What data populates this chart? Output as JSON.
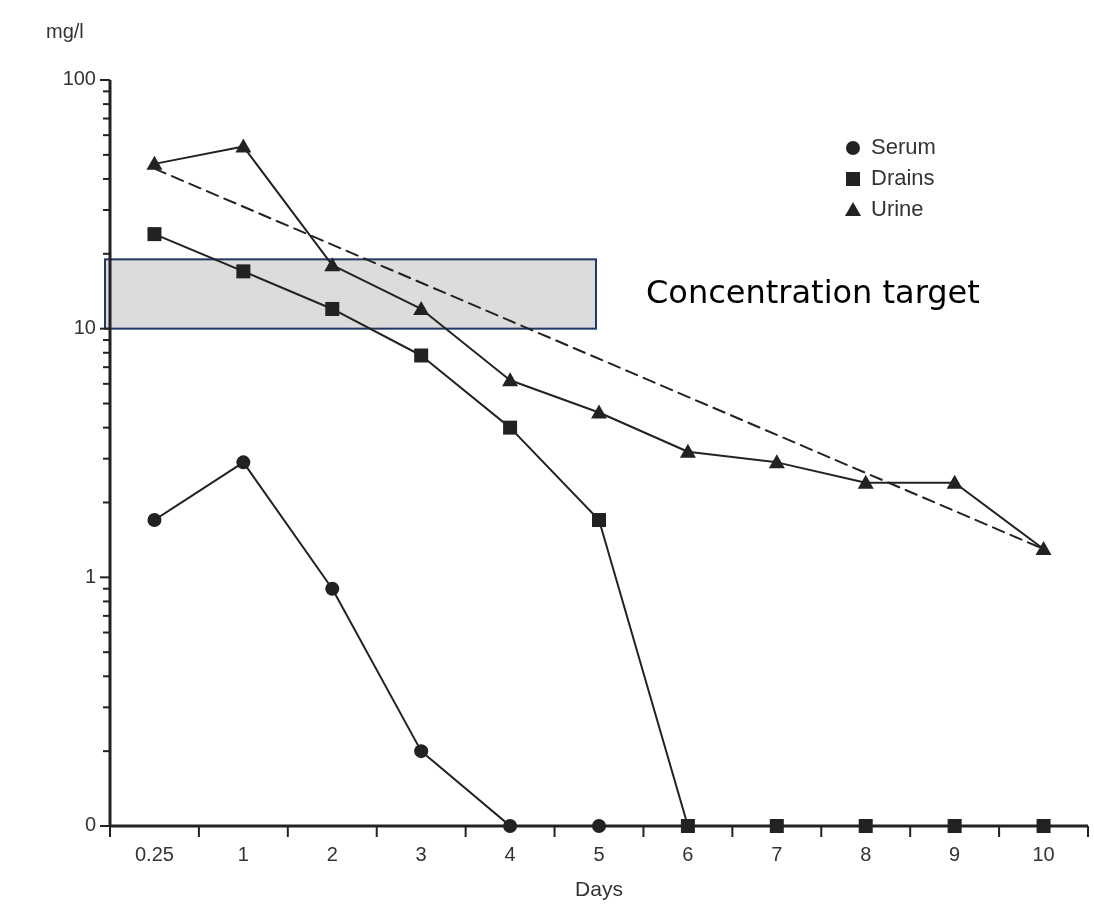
{
  "chart_data": {
    "type": "line",
    "xlabel": "Days",
    "ylabel": "mg/l",
    "categories": [
      "0.25",
      "1",
      "2",
      "3",
      "4",
      "5",
      "6",
      "7",
      "8",
      "9",
      "10"
    ],
    "log": "y",
    "ylim": [
      0.1,
      100
    ],
    "yticks": [
      {
        "value": 0.1,
        "label": "0"
      },
      {
        "value": 0.2,
        "label": null
      },
      {
        "value": 0.3,
        "label": null
      },
      {
        "value": 0.4,
        "label": null
      },
      {
        "value": 0.5,
        "label": null
      },
      {
        "value": 0.6,
        "label": null
      },
      {
        "value": 0.7,
        "label": null
      },
      {
        "value": 0.8,
        "label": null
      },
      {
        "value": 0.9,
        "label": null
      },
      1,
      {
        "value": 2,
        "label": null
      },
      {
        "value": 3,
        "label": null
      },
      {
        "value": 4,
        "label": null
      },
      {
        "value": 5,
        "label": null
      },
      {
        "value": 6,
        "label": null
      },
      {
        "value": 7,
        "label": null
      },
      {
        "value": 8,
        "label": null
      },
      {
        "value": 9,
        "label": null
      },
      10,
      {
        "value": 20,
        "label": null
      },
      {
        "value": 30,
        "label": null
      },
      {
        "value": 40,
        "label": null
      },
      {
        "value": 50,
        "label": null
      },
      {
        "value": 60,
        "label": null
      },
      {
        "value": 70,
        "label": null
      },
      {
        "value": 80,
        "label": null
      },
      {
        "value": 90,
        "label": null
      },
      100
    ],
    "legend": "top right",
    "grid": false,
    "bands": [
      {
        "axis": "y",
        "from": 10,
        "to": 19,
        "label": "Concentration target",
        "color": "#dcdcdc"
      }
    ],
    "series": [
      {
        "name": "Serum",
        "color": "#222222",
        "marker": "circle",
        "values": [
          1.7,
          2.9,
          0.9,
          0.2,
          0.1,
          0.1,
          null,
          null,
          null,
          null,
          null
        ]
      },
      {
        "name": "Drains",
        "color": "#222222",
        "marker": "square",
        "values": [
          24,
          17,
          12,
          7.8,
          4.0,
          1.7,
          0.1,
          0.1,
          0.1,
          0.1,
          0.1
        ]
      },
      {
        "name": "Urine",
        "color": "#222222",
        "marker": "triangle",
        "values": [
          46,
          54,
          18,
          12,
          6.2,
          4.6,
          3.2,
          2.9,
          2.4,
          2.4,
          1.3
        ]
      },
      {
        "color": "#222222",
        "line_style": "dashed",
        "x": [
          "0.25",
          "10"
        ],
        "values": [
          44,
          1.3
        ]
      }
    ]
  }
}
